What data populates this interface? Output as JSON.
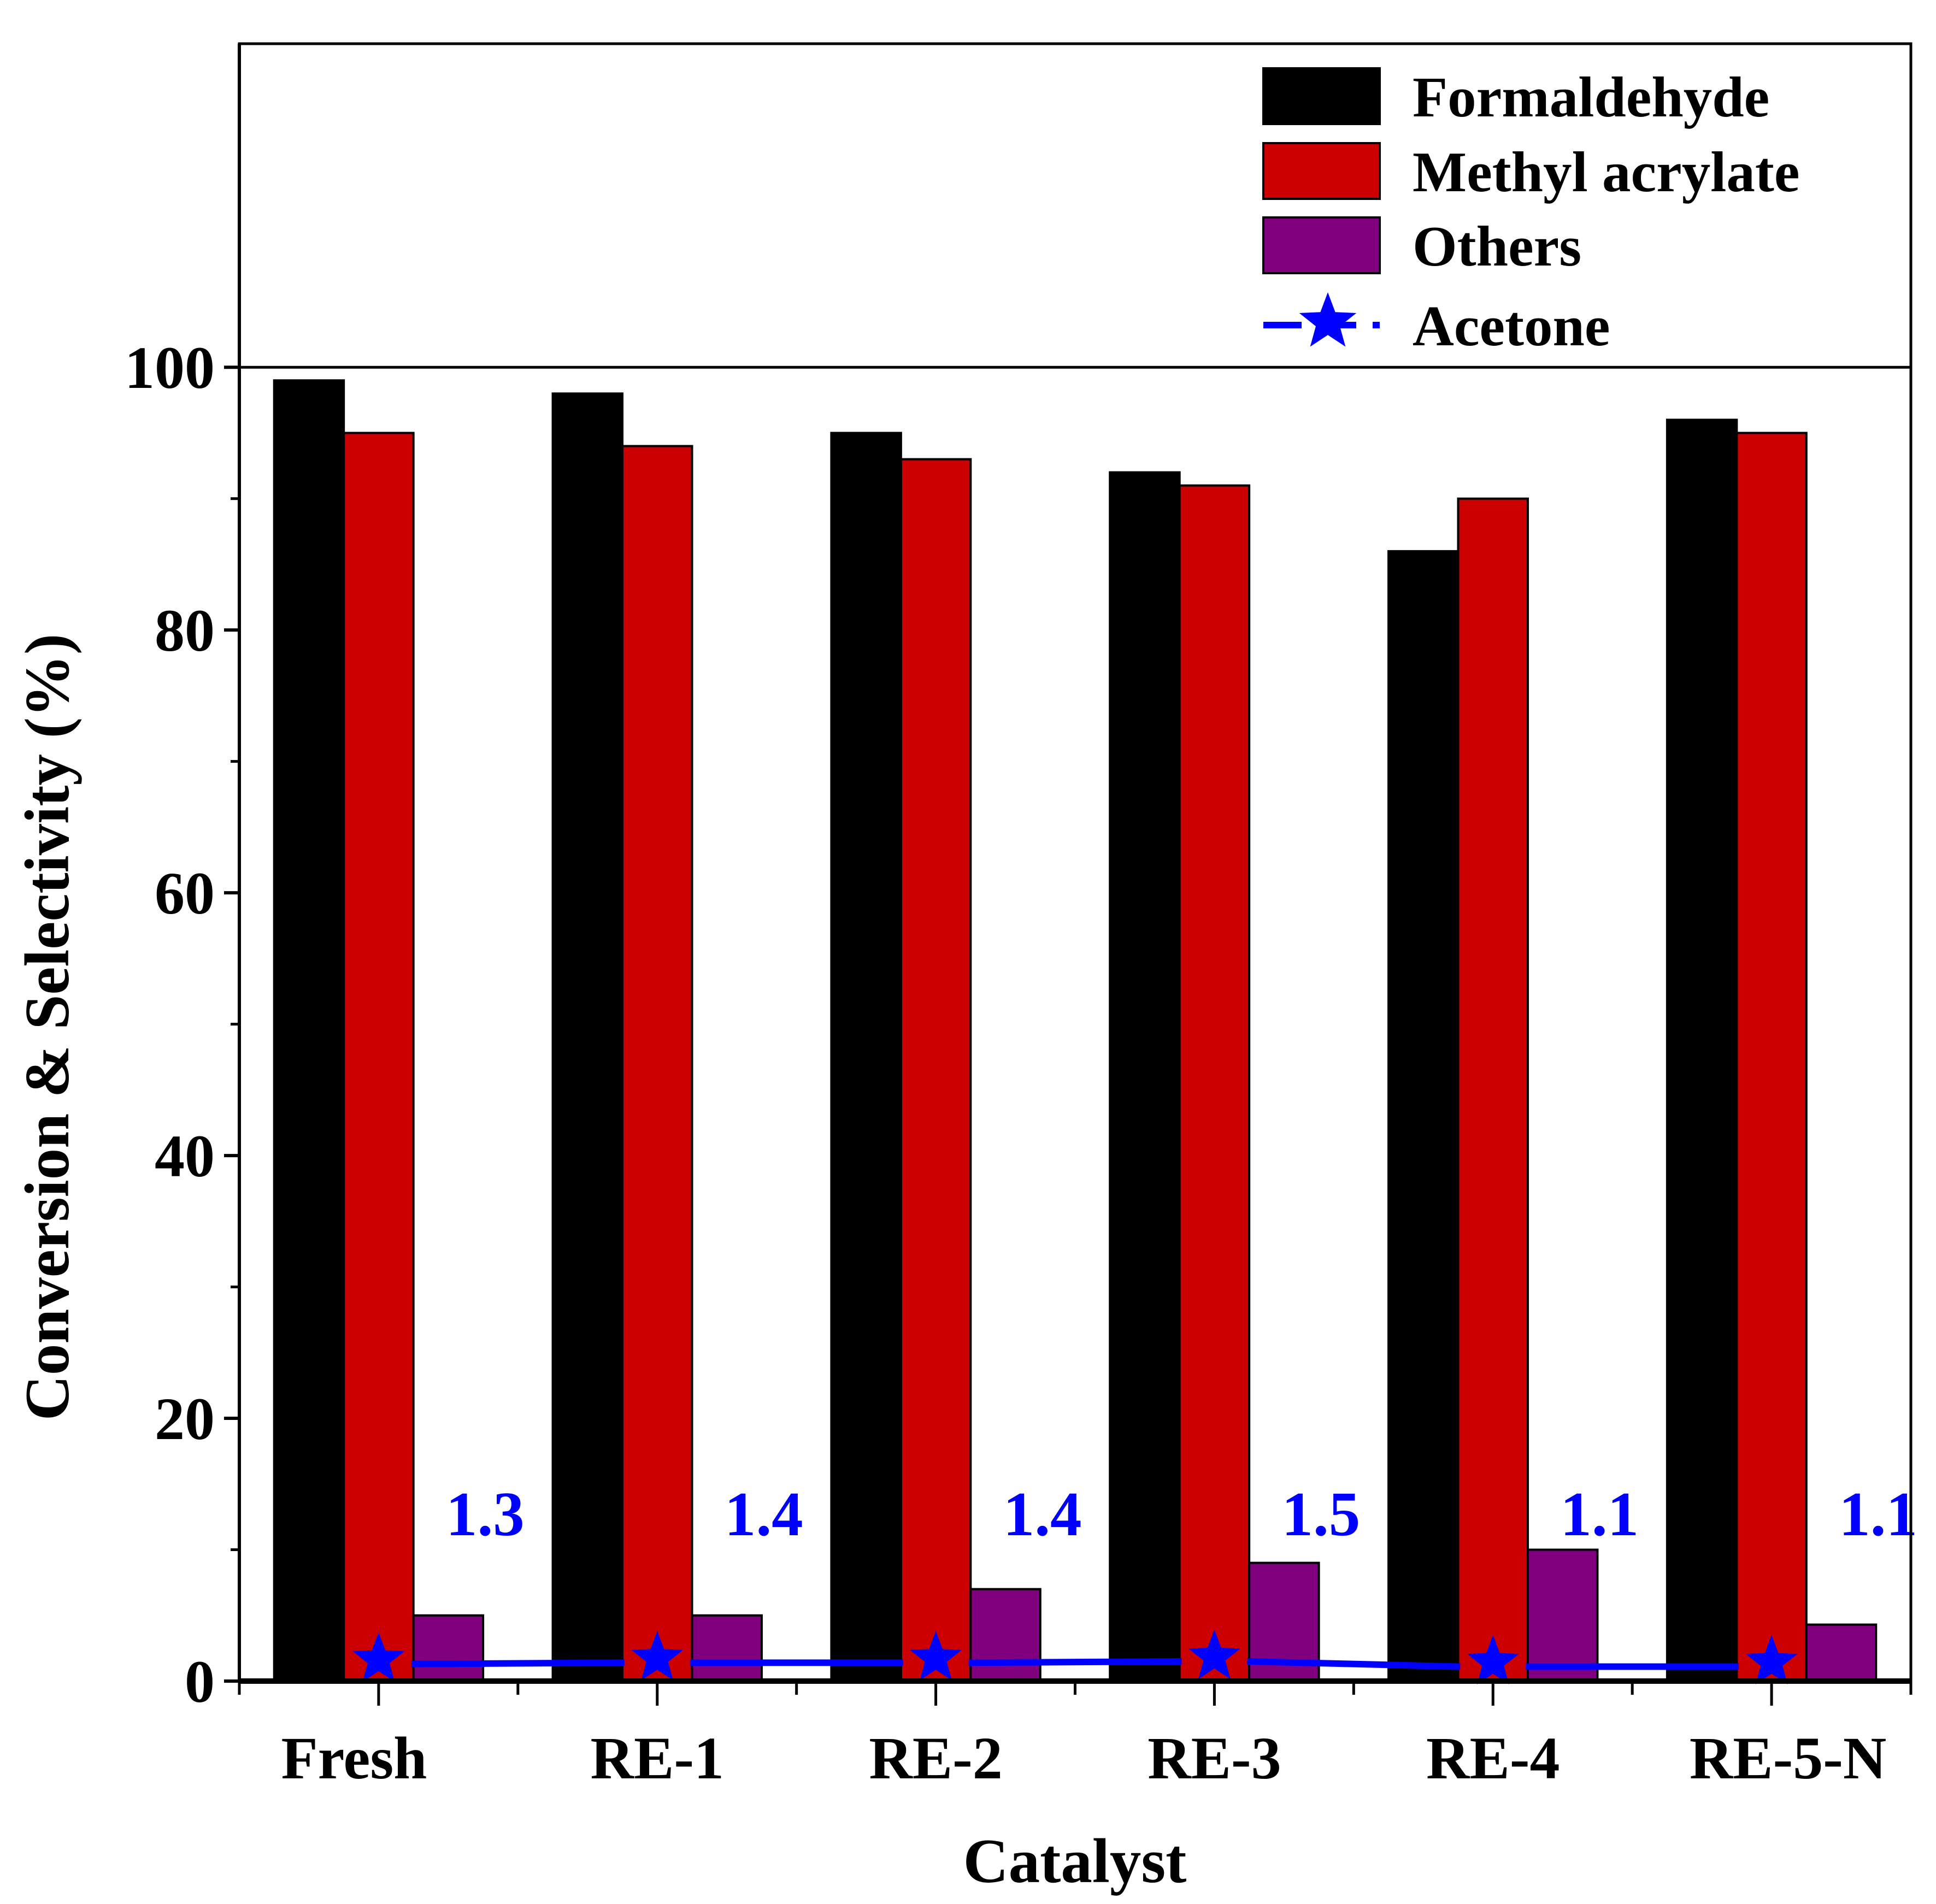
{
  "chart_data": {
    "type": "bar",
    "xlabel": "Catalyst",
    "ylabel": "Conversion & Selectivity (%)",
    "ylim": [
      0,
      125
    ],
    "yticks": [
      0,
      20,
      40,
      60,
      80,
      100
    ],
    "categories": [
      "Fresh",
      "RE-1",
      "RE-2",
      "RE-3",
      "RE-4",
      "RE-5-N"
    ],
    "series": [
      {
        "name": "Formaldehyde",
        "type": "bar",
        "color": "#000000",
        "values": [
          99,
          98,
          95,
          92,
          86,
          96
        ]
      },
      {
        "name": "Methyl acrylate",
        "type": "bar",
        "color": "#CC0000",
        "values": [
          95,
          94,
          93,
          91,
          90,
          95
        ]
      },
      {
        "name": "Others",
        "type": "bar",
        "color": "#800080",
        "values": [
          5,
          5,
          7,
          9,
          10,
          4.3
        ]
      },
      {
        "name": "Acetone",
        "type": "line",
        "marker": "star",
        "color": "#0000FF",
        "values": [
          1.3,
          1.4,
          1.4,
          1.5,
          1.1,
          1.1
        ]
      }
    ],
    "data_labels": [
      "1.3",
      "1.4",
      "1.4",
      "1.5",
      "1.1",
      "1.1"
    ],
    "legend_position": "top-right",
    "grid": false
  }
}
